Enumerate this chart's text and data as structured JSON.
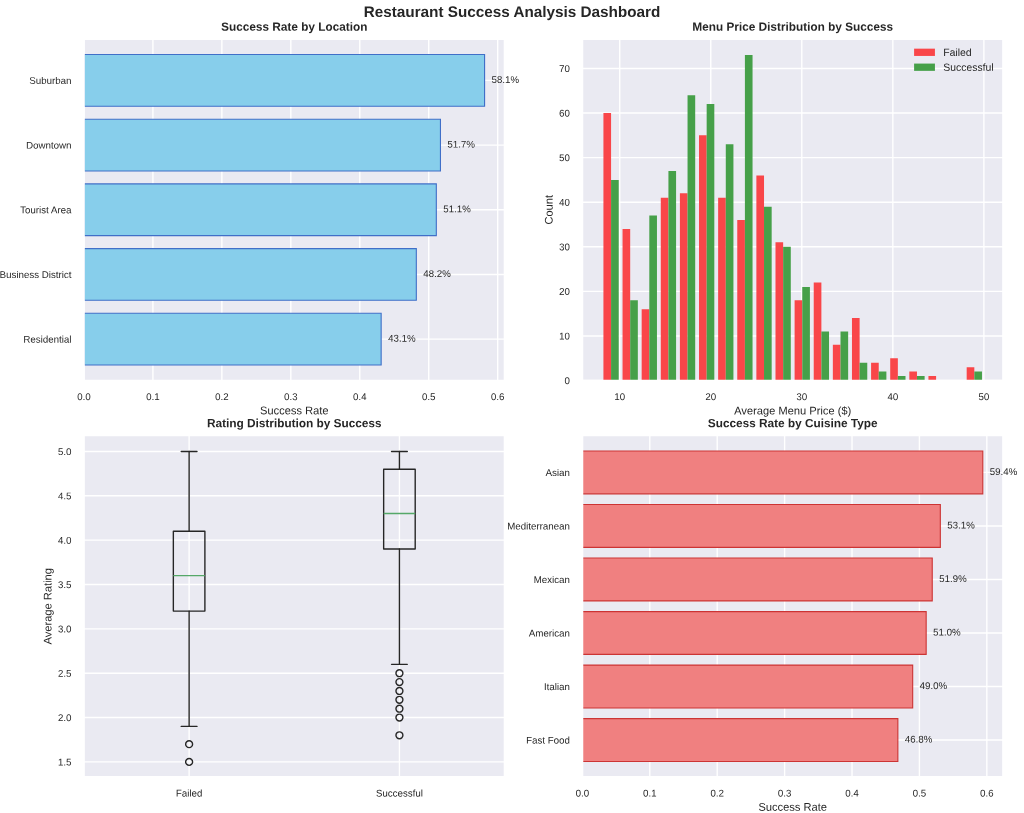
{
  "chart_data": [
    {
      "type": "other",
      "title": "Restaurant Success Analysis Dashboard"
    },
    {
      "type": "bar",
      "orientation": "horizontal",
      "title": "Success Rate by Location",
      "xlabel": "Success Rate",
      "categories": [
        "Suburban",
        "Downtown",
        "Tourist Area",
        "Business District",
        "Residential"
      ],
      "values": [
        0.581,
        0.517,
        0.511,
        0.482,
        0.431
      ],
      "value_labels": [
        "58.1%",
        "51.7%",
        "51.1%",
        "48.2%",
        "43.1%"
      ],
      "color": "#87ceeb",
      "xlim": [
        0,
        0.61
      ],
      "xticks": [
        {
          "value": 0,
          "label": "0.0"
        },
        0.1,
        0.2,
        0.3,
        0.4,
        0.5,
        0.6
      ],
      "grid": true
    },
    {
      "type": "histogram",
      "title": "Menu Price Distribution by Success",
      "xlabel": "Average Menu Price ($)",
      "ylabel": "Count",
      "bins": [
        8.0,
        10.1,
        12.2,
        14.3,
        16.4,
        18.5,
        20.6,
        22.7,
        24.8,
        26.9,
        29.0,
        31.1,
        33.2,
        35.3,
        37.4,
        39.5,
        41.6,
        43.7,
        45.8,
        47.9,
        50.0
      ],
      "series": [
        {
          "name": "Failed",
          "color": "#f94649",
          "values": [
            60,
            34,
            16,
            41,
            42,
            55,
            41,
            36,
            46,
            31,
            18,
            22,
            8,
            14,
            4,
            5,
            2,
            1,
            0,
            3
          ]
        },
        {
          "name": "Successful",
          "color": "#46a049",
          "values": [
            45,
            18,
            37,
            47,
            64,
            62,
            53,
            73,
            39,
            30,
            21,
            11,
            11,
            4,
            2,
            1,
            1,
            0,
            0,
            2
          ]
        }
      ],
      "xlim": [
        5.9,
        52.1
      ],
      "xticks": [
        10,
        20,
        30,
        40,
        50
      ],
      "ylim": [
        0,
        76.6
      ],
      "yticks": [
        0,
        10,
        20,
        30,
        40,
        50,
        60,
        70
      ],
      "grid": true,
      "legend": "top right"
    },
    {
      "type": "box",
      "title": "Rating Distribution by Success",
      "ylabel": "Average Rating",
      "categories": [
        "Failed",
        "Successful"
      ],
      "boxes": [
        {
          "low": 1.9,
          "q1": 3.2,
          "median": 3.6,
          "q3": 4.1,
          "high": 5.0,
          "outliers": [
            1.7,
            1.5
          ]
        },
        {
          "low": 2.6,
          "q1": 3.9,
          "median": 4.3,
          "q3": 4.8,
          "high": 5.0,
          "outliers": [
            2.5,
            2.4,
            2.3,
            2.2,
            2.1,
            2.0,
            1.8
          ]
        }
      ],
      "ylim": [
        1.33,
        5.18
      ],
      "yticks": [
        1.5,
        {
          "value": 2,
          "label": "2.0"
        },
        2.5,
        {
          "value": 3,
          "label": "3.0"
        },
        3.5,
        {
          "value": 4,
          "label": "4.0"
        },
        4.5,
        {
          "value": 5,
          "label": "5.0"
        }
      ],
      "grid": true
    },
    {
      "type": "bar",
      "orientation": "horizontal",
      "title": "Success Rate by Cuisine Type",
      "xlabel": "Success Rate",
      "categories": [
        "Asian",
        "Mediterranean",
        "Mexican",
        "American",
        "Italian",
        "Fast Food"
      ],
      "values": [
        0.594,
        0.531,
        0.519,
        0.51,
        0.49,
        0.468
      ],
      "value_labels": [
        "59.4%",
        "53.1%",
        "51.9%",
        "51.0%",
        "49.0%",
        "46.8%"
      ],
      "color": "#f08080",
      "xlim": [
        0,
        0.624
      ],
      "xticks": [
        {
          "value": 0,
          "label": "0.0"
        },
        0.1,
        0.2,
        0.3,
        0.4,
        0.5,
        0.6
      ],
      "grid": true
    }
  ]
}
